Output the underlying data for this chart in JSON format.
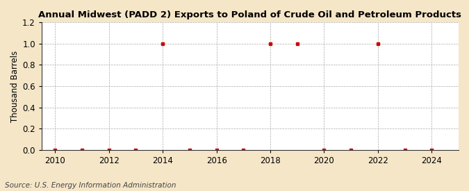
{
  "title": "Annual Midwest (PADD 2) Exports to Poland of Crude Oil and Petroleum Products",
  "ylabel": "Thousand Barrels",
  "source_text": "Source: U.S. Energy Information Administration",
  "background_color": "#f5e6c8",
  "plot_bg_color": "#ffffff",
  "grid_color": "#aaaaaa",
  "marker_color": "#cc0000",
  "x_data": [
    2010,
    2011,
    2012,
    2013,
    2014,
    2015,
    2016,
    2017,
    2018,
    2019,
    2020,
    2021,
    2022,
    2023,
    2024
  ],
  "y_data": [
    0,
    0,
    0,
    0,
    1,
    0,
    0,
    0,
    1,
    1,
    0,
    0,
    1,
    0,
    0
  ],
  "xlim": [
    2009.5,
    2025.0
  ],
  "ylim": [
    0.0,
    1.2
  ],
  "xticks": [
    2010,
    2012,
    2014,
    2016,
    2018,
    2020,
    2022,
    2024
  ],
  "yticks": [
    0.0,
    0.2,
    0.4,
    0.6,
    0.8,
    1.0,
    1.2
  ],
  "title_fontsize": 9.5,
  "label_fontsize": 8.5,
  "tick_fontsize": 8.5,
  "source_fontsize": 7.5
}
